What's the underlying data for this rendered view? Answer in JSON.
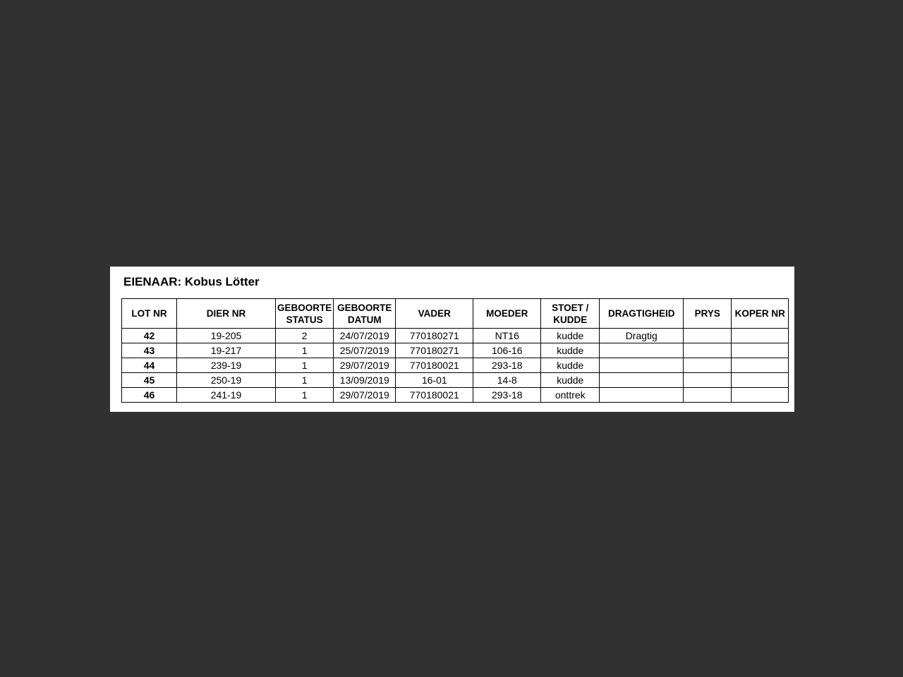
{
  "page": {
    "background_color": "#313131",
    "panel_color": "#ffffff"
  },
  "document": {
    "title": "EIENAAR: Kobus Lötter"
  },
  "table": {
    "columns": [
      {
        "key": "lot_nr",
        "label": "LOT NR"
      },
      {
        "key": "dier_nr",
        "label": "DIER NR"
      },
      {
        "key": "geboorte_status",
        "label": "GEBOORTE STATUS"
      },
      {
        "key": "geboorte_datum",
        "label": "GEBOORTE DATUM"
      },
      {
        "key": "vader",
        "label": "VADER"
      },
      {
        "key": "moeder",
        "label": "MOEDER"
      },
      {
        "key": "stoet_kudde",
        "label": "STOET / KUDDE"
      },
      {
        "key": "dragtigheid",
        "label": "DRAGTIGHEID"
      },
      {
        "key": "prys",
        "label": "PRYS"
      },
      {
        "key": "koper_nr",
        "label": "KOPER NR"
      }
    ],
    "rows": [
      [
        "42",
        "19-205",
        "2",
        "24/07/2019",
        "770180271",
        "NT16",
        "kudde",
        "Dragtig",
        "",
        ""
      ],
      [
        "43",
        "19-217",
        "1",
        "25/07/2019",
        "770180271",
        "106-16",
        "kudde",
        "",
        "",
        ""
      ],
      [
        "44",
        "239-19",
        "1",
        "29/07/2019",
        "770180021",
        "293-18",
        "kudde",
        "",
        "",
        ""
      ],
      [
        "45",
        "250-19",
        "1",
        "13/09/2019",
        "16-01",
        "14-8",
        "kudde",
        "",
        "",
        ""
      ],
      [
        "46",
        "241-19",
        "1",
        "29/07/2019",
        "770180021",
        "293-18",
        "onttrek",
        "",
        "",
        ""
      ]
    ]
  }
}
